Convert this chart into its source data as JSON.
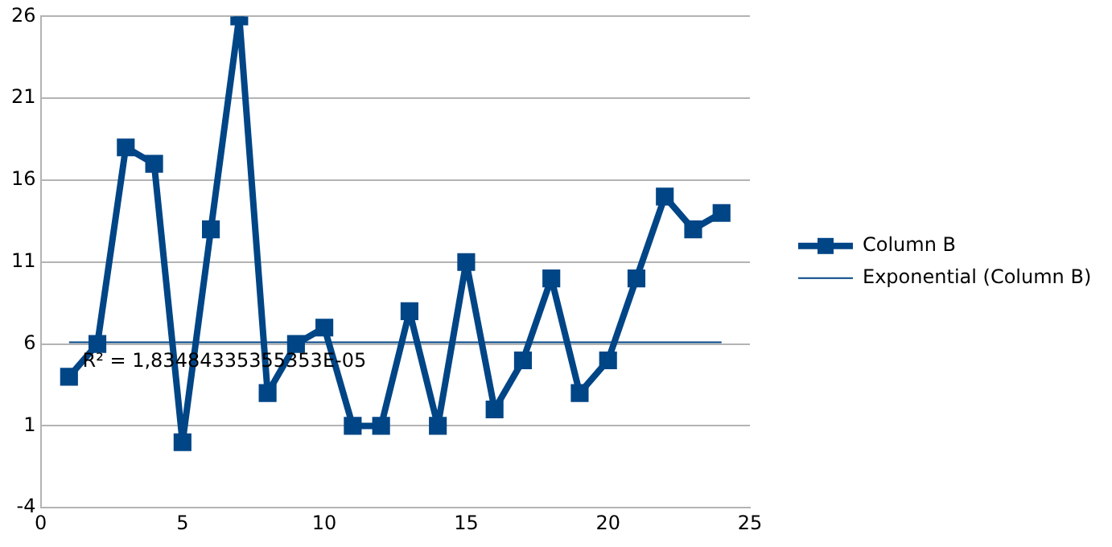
{
  "chart_data": {
    "type": "line",
    "x": [
      1,
      2,
      3,
      4,
      5,
      6,
      7,
      8,
      9,
      10,
      11,
      12,
      13,
      14,
      15,
      16,
      17,
      18,
      19,
      20,
      21,
      22,
      23,
      24
    ],
    "series": [
      {
        "name": "Column B",
        "color": "#004586",
        "marker": "square",
        "values": [
          4,
          6,
          18,
          17,
          0,
          13,
          26,
          3,
          6,
          7,
          1,
          1,
          8,
          1,
          11,
          2,
          5,
          10,
          3,
          5,
          10,
          15,
          13,
          14
        ]
      },
      {
        "name": "Exponential (Column B)",
        "color": "#004586",
        "marker": "none",
        "x": [
          1,
          24
        ],
        "values": [
          6.1,
          6.1
        ]
      }
    ],
    "xlim": [
      0,
      25
    ],
    "xticks": [
      0,
      5,
      10,
      15,
      20,
      25
    ],
    "ylim": [
      -4,
      26
    ],
    "yticks": [
      -4,
      1,
      6,
      11,
      16,
      21,
      26
    ],
    "grid": "y",
    "legend": "right",
    "annotations": [
      "R² = 1,83484335355353E-05"
    ]
  }
}
